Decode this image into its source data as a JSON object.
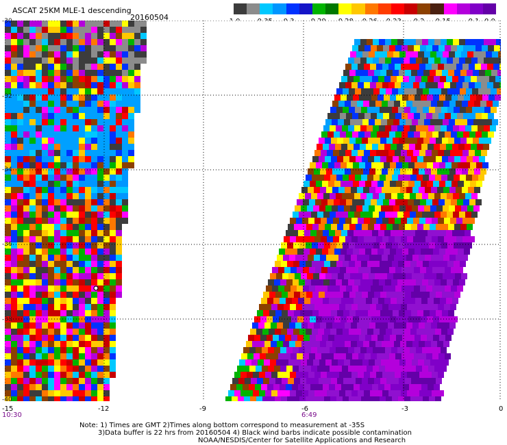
{
  "title": "ASCAT 25KM MLE-1 descending",
  "date": "20160504",
  "colorbar": {
    "colors": [
      "#3c3c3c",
      "#8c8c8c",
      "#00c8ff",
      "#0096ff",
      "#0032ff",
      "#1414c8",
      "#00b400",
      "#007800",
      "#ffff00",
      "#ffc800",
      "#ff7800",
      "#ff3c00",
      "#ff0000",
      "#c80000",
      "#8c4000",
      "#4a2010",
      "#ff00ff",
      "#b400dc",
      "#8000c8",
      "#6400a8"
    ],
    "labels": [
      "-1.0",
      "-0.35",
      "-0.3",
      "-0.29",
      "-0.28",
      "-0.26",
      "-0.23",
      "-0.2",
      "-0.15",
      "-0.1",
      "0.0"
    ]
  },
  "lat_labels": [
    "-30",
    "-32",
    "-34",
    "-36",
    "-38",
    "-40"
  ],
  "lon_labels": [
    "-15",
    "-12",
    "-9",
    "-6",
    "-3",
    "0"
  ],
  "times": [
    "10:30",
    "6:49"
  ],
  "notes": [
    "Note: 1) Times are GMT 2)Times along bottom correspond to measurement at -35S",
    "3)Data buffer is 22 hrs from 20160504 4) Black wind barbs indicate possible contamination",
    "NOAA/NESDIS/Center for Satellite Applications and Research"
  ]
}
